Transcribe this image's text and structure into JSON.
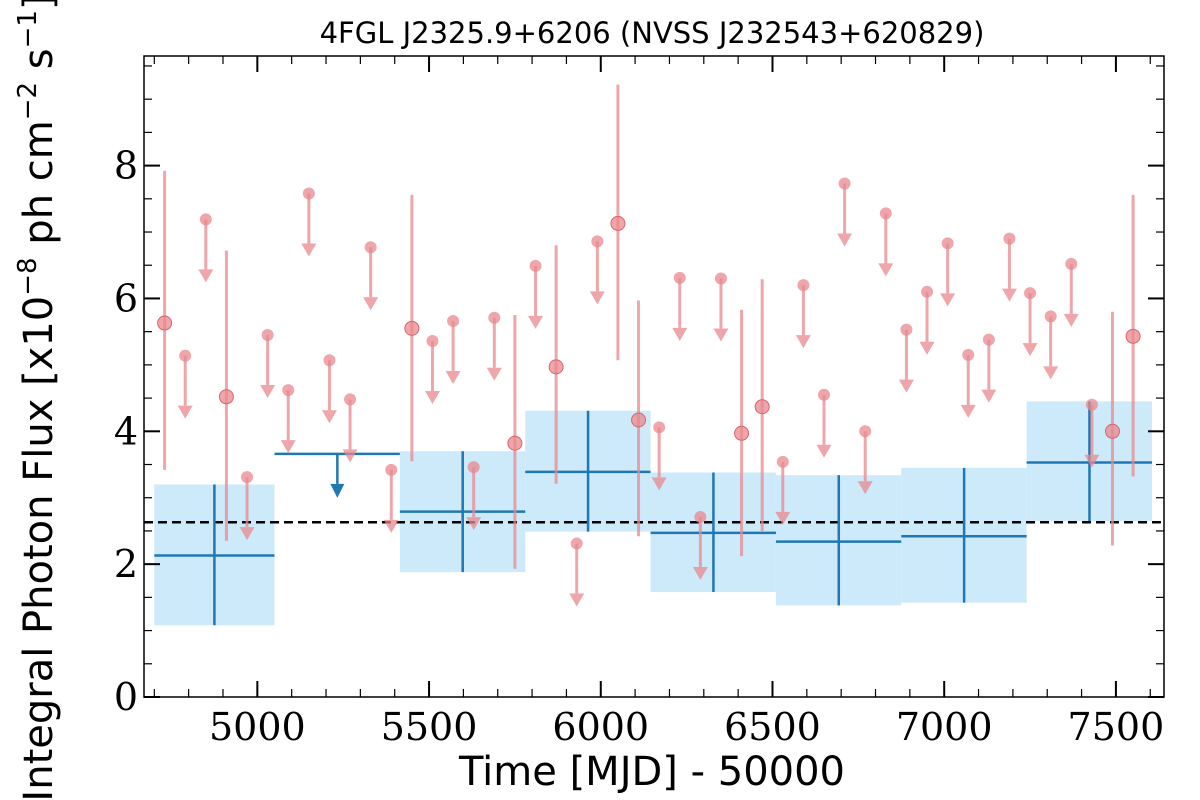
{
  "chart_data": {
    "type": "scatter",
    "title": "4FGL J2325.9+6206 (NVSS J232543+620829)",
    "xlabel": "Time [MJD] - 50000",
    "ylabel": "Integral Photon Flux [x10",
    "ylabel_exp1": "−8",
    "ylabel_mid": " ph cm",
    "ylabel_exp2": "−2",
    "ylabel_mid2": " s",
    "ylabel_exp3": "−1",
    "ylabel_end": "]",
    "xlim": [
      4670,
      7640
    ],
    "ylim": [
      0,
      9.65
    ],
    "x_ticks": [
      5000,
      5500,
      6000,
      6500,
      7000,
      7500
    ],
    "x_tick_labels": [
      "5000",
      "5500",
      "6000",
      "6500",
      "7000",
      "7500"
    ],
    "y_ticks": [
      0,
      2,
      4,
      6,
      8
    ],
    "y_tick_labels": [
      "0",
      "2",
      "4",
      "6",
      "8"
    ],
    "grid": false,
    "colors": {
      "short_bins": "#e8888e",
      "long_bins": "#1f77b4",
      "long_bins_band": "#cdeafb",
      "mean_line": "#000000"
    },
    "mean_flux": 2.63,
    "series": [
      {
        "points": [
          {
            "x": 4730,
            "y": 5.63,
            "lo": 3.42,
            "hi": 7.92
          },
          {
            "x": 4790,
            "y": 5.14,
            "ul": true
          },
          {
            "x": 4850,
            "y": 7.19,
            "ul": true
          },
          {
            "x": 4910,
            "y": 4.52,
            "lo": 2.35,
            "hi": 6.72
          },
          {
            "x": 4970,
            "y": 3.31,
            "ul": true
          },
          {
            "x": 5030,
            "y": 5.45,
            "ul": true
          },
          {
            "x": 5090,
            "y": 4.62,
            "ul": true
          },
          {
            "x": 5150,
            "y": 7.58,
            "ul": true
          },
          {
            "x": 5210,
            "y": 5.07,
            "ul": true
          },
          {
            "x": 5270,
            "y": 4.48,
            "ul": true
          },
          {
            "x": 5330,
            "y": 6.77,
            "ul": true
          },
          {
            "x": 5390,
            "y": 3.42,
            "ul": true
          },
          {
            "x": 5450,
            "y": 5.55,
            "lo": 3.55,
            "hi": 7.56
          },
          {
            "x": 5510,
            "y": 5.36,
            "ul": true
          },
          {
            "x": 5570,
            "y": 5.66,
            "ul": true
          },
          {
            "x": 5630,
            "y": 3.46,
            "ul": true
          },
          {
            "x": 5690,
            "y": 5.71,
            "ul": true
          },
          {
            "x": 5750,
            "y": 3.82,
            "lo": 1.93,
            "hi": 5.75
          },
          {
            "x": 5810,
            "y": 6.49,
            "ul": true
          },
          {
            "x": 5870,
            "y": 4.97,
            "lo": 3.21,
            "hi": 6.8
          },
          {
            "x": 5930,
            "y": 2.31,
            "ul": true
          },
          {
            "x": 5990,
            "y": 6.86,
            "ul": true
          },
          {
            "x": 6050,
            "y": 7.13,
            "lo": 5.07,
            "hi": 9.22
          },
          {
            "x": 6110,
            "y": 4.17,
            "lo": 2.42,
            "hi": 5.97
          },
          {
            "x": 6170,
            "y": 4.06,
            "ul": true
          },
          {
            "x": 6230,
            "y": 6.31,
            "ul": true
          },
          {
            "x": 6290,
            "y": 2.71,
            "ul": true
          },
          {
            "x": 6350,
            "y": 6.3,
            "ul": true
          },
          {
            "x": 6410,
            "y": 3.97,
            "lo": 2.12,
            "hi": 5.83
          },
          {
            "x": 6470,
            "y": 4.37,
            "lo": 2.5,
            "hi": 6.29
          },
          {
            "x": 6530,
            "y": 3.54,
            "ul": true
          },
          {
            "x": 6590,
            "y": 6.2,
            "ul": true
          },
          {
            "x": 6650,
            "y": 4.55,
            "ul": true
          },
          {
            "x": 6710,
            "y": 7.73,
            "ul": true
          },
          {
            "x": 6770,
            "y": 4.0,
            "ul": true
          },
          {
            "x": 6830,
            "y": 7.28,
            "ul": true
          },
          {
            "x": 6890,
            "y": 5.53,
            "ul": true
          },
          {
            "x": 6950,
            "y": 6.1,
            "ul": true
          },
          {
            "x": 7010,
            "y": 6.83,
            "ul": true
          },
          {
            "x": 7070,
            "y": 5.15,
            "ul": true
          },
          {
            "x": 7130,
            "y": 5.38,
            "ul": true
          },
          {
            "x": 7190,
            "y": 6.9,
            "ul": true
          },
          {
            "x": 7250,
            "y": 6.08,
            "ul": true
          },
          {
            "x": 7310,
            "y": 5.73,
            "ul": true
          },
          {
            "x": 7370,
            "y": 6.52,
            "ul": true
          },
          {
            "x": 7430,
            "y": 4.4,
            "ul": true
          },
          {
            "x": 7490,
            "y": 4.0,
            "lo": 2.28,
            "hi": 5.8
          },
          {
            "x": 7550,
            "y": 5.43,
            "lo": 3.32,
            "hi": 7.56
          }
        ]
      },
      {
        "bins": [
          {
            "x0": 4700,
            "x1": 5050,
            "x": 4875,
            "y": 2.13,
            "lo": 1.08,
            "hi": 3.2
          },
          {
            "x0": 5050,
            "x1": 5415,
            "x": 5233,
            "y": 3.66,
            "ul": true
          },
          {
            "x0": 5415,
            "x1": 5780,
            "x": 5598,
            "y": 2.79,
            "lo": 1.88,
            "hi": 3.7
          },
          {
            "x0": 5780,
            "x1": 6145,
            "x": 5963,
            "y": 3.39,
            "lo": 2.49,
            "hi": 4.31
          },
          {
            "x0": 6145,
            "x1": 6510,
            "x": 6328,
            "y": 2.47,
            "lo": 1.58,
            "hi": 3.38
          },
          {
            "x0": 6510,
            "x1": 6875,
            "x": 6693,
            "y": 2.34,
            "lo": 1.38,
            "hi": 3.34
          },
          {
            "x0": 6875,
            "x1": 7240,
            "x": 7058,
            "y": 2.42,
            "lo": 1.42,
            "hi": 3.45
          },
          {
            "x0": 7240,
            "x1": 7605,
            "x": 7423,
            "y": 3.53,
            "lo": 2.65,
            "hi": 4.45
          }
        ]
      }
    ]
  }
}
